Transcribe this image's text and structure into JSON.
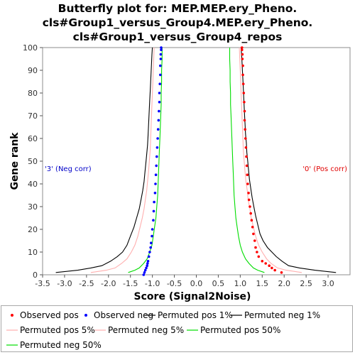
{
  "title_lines": [
    "Butterfly plot for: MEP.MEP.ery_Pheno.",
    "cls#Group1_versus_Group4.MEP.ery_Pheno.",
    "cls#Group1_versus_Group4_repos"
  ],
  "colors": {
    "observed_pos": "#ff0000",
    "observed_neg": "#0000ff",
    "permuted_1": "#000000",
    "permuted_5": "#ffafaf",
    "permuted_50": "#00dd00",
    "neg_annotation": "#0000c8",
    "pos_annotation": "#e00000"
  },
  "chart_data": {
    "type": "scatter",
    "xlabel": "Score (Signal2Noise)",
    "ylabel": "Gene rank",
    "xlim": [
      -3.5,
      3.5
    ],
    "ylim": [
      0,
      100
    ],
    "x_ticks": [
      "-3.5",
      "-3.0",
      "-2.5",
      "-2.0",
      "-1.5",
      "-1.0",
      "-0.5",
      "0.0",
      "0.5",
      "1.0",
      "1.5",
      "2.0",
      "2.5",
      "3.0"
    ],
    "y_ticks": [
      "0",
      "10",
      "20",
      "30",
      "40",
      "50",
      "60",
      "70",
      "80",
      "90",
      "100"
    ],
    "grid": false,
    "annotations": {
      "neg": "'3' (Neg corr)",
      "pos": "'0' (Pos corr)"
    },
    "legend": [
      {
        "name": "Observed pos",
        "kind": "dot",
        "color": "#ff0000"
      },
      {
        "name": "Observed neg",
        "kind": "dot",
        "color": "#0000ff"
      },
      {
        "name": "Permuted pos 1%",
        "kind": "line",
        "color": "#000000"
      },
      {
        "name": "Permuted neg 1%",
        "kind": "line",
        "color": "#000000"
      },
      {
        "name": "Permuted pos 5%",
        "kind": "line",
        "color": "#ffafaf"
      },
      {
        "name": "Permuted neg 5%",
        "kind": "line",
        "color": "#ffafaf"
      },
      {
        "name": "Permuted pos 50%",
        "kind": "line",
        "color": "#00dd00"
      },
      {
        "name": "Permuted neg 50%",
        "kind": "line",
        "color": "#00dd00"
      }
    ],
    "series": [
      {
        "name": "Observed pos",
        "kind": "dots",
        "color": "#ff0000",
        "points": [
          [
            1.94,
            1
          ],
          [
            1.79,
            2
          ],
          [
            1.72,
            3
          ],
          [
            1.66,
            4
          ],
          [
            1.58,
            5
          ],
          [
            1.5,
            6
          ],
          [
            1.42,
            8
          ],
          [
            1.38,
            10
          ],
          [
            1.35,
            12
          ],
          [
            1.33,
            15
          ],
          [
            1.3,
            18
          ],
          [
            1.28,
            21
          ],
          [
            1.26,
            24
          ],
          [
            1.24,
            27
          ],
          [
            1.22,
            30
          ],
          [
            1.2,
            33
          ],
          [
            1.19,
            36
          ],
          [
            1.17,
            40
          ],
          [
            1.16,
            44
          ],
          [
            1.15,
            48
          ],
          [
            1.14,
            52
          ],
          [
            1.13,
            56
          ],
          [
            1.12,
            60
          ],
          [
            1.11,
            64
          ],
          [
            1.1,
            68
          ],
          [
            1.1,
            72
          ],
          [
            1.09,
            76
          ],
          [
            1.08,
            80
          ],
          [
            1.07,
            84
          ],
          [
            1.06,
            88
          ],
          [
            1.06,
            92
          ],
          [
            1.05,
            95
          ],
          [
            1.05,
            97
          ],
          [
            1.04,
            99
          ],
          [
            1.04,
            100
          ]
        ]
      },
      {
        "name": "Observed neg",
        "kind": "dots",
        "color": "#0000ff",
        "points": [
          [
            -1.2,
            0
          ],
          [
            -1.18,
            1
          ],
          [
            -1.16,
            2
          ],
          [
            -1.14,
            3
          ],
          [
            -1.12,
            4
          ],
          [
            -1.11,
            5
          ],
          [
            -1.1,
            6
          ],
          [
            -1.08,
            8
          ],
          [
            -1.06,
            10
          ],
          [
            -1.04,
            12
          ],
          [
            -1.03,
            14
          ],
          [
            -1.01,
            17
          ],
          [
            -1.0,
            20
          ],
          [
            -0.98,
            24
          ],
          [
            -0.97,
            28
          ],
          [
            -0.96,
            32
          ],
          [
            -0.94,
            36
          ],
          [
            -0.93,
            40
          ],
          [
            -0.92,
            44
          ],
          [
            -0.91,
            48
          ],
          [
            -0.9,
            52
          ],
          [
            -0.89,
            56
          ],
          [
            -0.88,
            60
          ],
          [
            -0.87,
            64
          ],
          [
            -0.86,
            68
          ],
          [
            -0.85,
            72
          ],
          [
            -0.84,
            76
          ],
          [
            -0.84,
            80
          ],
          [
            -0.83,
            84
          ],
          [
            -0.82,
            88
          ],
          [
            -0.82,
            92
          ],
          [
            -0.81,
            95
          ],
          [
            -0.81,
            97
          ],
          [
            -0.8,
            99
          ],
          [
            -0.8,
            100
          ]
        ]
      },
      {
        "name": "Permuted pos 1%",
        "kind": "line",
        "color": "#000000",
        "points": [
          [
            3.18,
            1
          ],
          [
            2.7,
            2
          ],
          [
            2.35,
            3
          ],
          [
            2.1,
            4
          ],
          [
            1.95,
            6
          ],
          [
            1.82,
            8
          ],
          [
            1.72,
            10
          ],
          [
            1.62,
            12
          ],
          [
            1.52,
            15
          ],
          [
            1.45,
            18
          ],
          [
            1.4,
            22
          ],
          [
            1.35,
            26
          ],
          [
            1.31,
            30
          ],
          [
            1.27,
            34
          ],
          [
            1.24,
            38
          ],
          [
            1.21,
            42
          ],
          [
            1.19,
            46
          ],
          [
            1.17,
            50
          ],
          [
            1.15,
            54
          ],
          [
            1.14,
            58
          ],
          [
            1.12,
            62
          ],
          [
            1.11,
            66
          ],
          [
            1.1,
            70
          ],
          [
            1.09,
            74
          ],
          [
            1.08,
            78
          ],
          [
            1.07,
            82
          ],
          [
            1.06,
            86
          ],
          [
            1.05,
            90
          ],
          [
            1.04,
            94
          ],
          [
            1.03,
            97
          ],
          [
            1.02,
            100
          ]
        ]
      },
      {
        "name": "Permuted neg 1%",
        "kind": "line",
        "color": "#000000",
        "points": [
          [
            -3.2,
            1
          ],
          [
            -2.7,
            2
          ],
          [
            -2.4,
            3
          ],
          [
            -2.15,
            4
          ],
          [
            -1.95,
            6
          ],
          [
            -1.8,
            8
          ],
          [
            -1.68,
            10
          ],
          [
            -1.58,
            13
          ],
          [
            -1.5,
            17
          ],
          [
            -1.42,
            21
          ],
          [
            -1.36,
            25
          ],
          [
            -1.3,
            29
          ],
          [
            -1.26,
            33
          ],
          [
            -1.22,
            37
          ],
          [
            -1.19,
            41
          ],
          [
            -1.17,
            45
          ],
          [
            -1.15,
            49
          ],
          [
            -1.13,
            53
          ],
          [
            -1.11,
            57
          ],
          [
            -1.1,
            61
          ],
          [
            -1.09,
            65
          ],
          [
            -1.08,
            69
          ],
          [
            -1.07,
            73
          ],
          [
            -1.06,
            77
          ],
          [
            -1.05,
            81
          ],
          [
            -1.04,
            85
          ],
          [
            -1.03,
            89
          ],
          [
            -1.02,
            93
          ],
          [
            -1.01,
            97
          ],
          [
            -1.0,
            100
          ]
        ]
      },
      {
        "name": "Permuted pos 5%",
        "kind": "line",
        "color": "#ffafaf",
        "points": [
          [
            2.4,
            1
          ],
          [
            2.05,
            2
          ],
          [
            1.85,
            3
          ],
          [
            1.7,
            5
          ],
          [
            1.6,
            7
          ],
          [
            1.5,
            10
          ],
          [
            1.42,
            13
          ],
          [
            1.35,
            17
          ],
          [
            1.3,
            21
          ],
          [
            1.25,
            25
          ],
          [
            1.22,
            29
          ],
          [
            1.18,
            33
          ],
          [
            1.16,
            37
          ],
          [
            1.13,
            41
          ],
          [
            1.11,
            45
          ],
          [
            1.09,
            50
          ],
          [
            1.07,
            55
          ],
          [
            1.06,
            60
          ],
          [
            1.05,
            65
          ],
          [
            1.04,
            70
          ],
          [
            1.03,
            75
          ],
          [
            1.02,
            80
          ],
          [
            1.01,
            85
          ],
          [
            1.0,
            90
          ],
          [
            0.99,
            95
          ],
          [
            0.98,
            100
          ]
        ]
      },
      {
        "name": "Permuted neg 5%",
        "kind": "line",
        "color": "#ffafaf",
        "points": [
          [
            -2.4,
            1
          ],
          [
            -2.05,
            2
          ],
          [
            -1.85,
            3
          ],
          [
            -1.7,
            5
          ],
          [
            -1.58,
            7
          ],
          [
            -1.48,
            10
          ],
          [
            -1.4,
            13
          ],
          [
            -1.33,
            17
          ],
          [
            -1.28,
            21
          ],
          [
            -1.23,
            25
          ],
          [
            -1.19,
            29
          ],
          [
            -1.16,
            33
          ],
          [
            -1.13,
            37
          ],
          [
            -1.11,
            41
          ],
          [
            -1.09,
            45
          ],
          [
            -1.07,
            50
          ],
          [
            -1.05,
            55
          ],
          [
            -1.04,
            60
          ],
          [
            -1.03,
            65
          ],
          [
            -1.02,
            70
          ],
          [
            -1.01,
            75
          ],
          [
            -1.0,
            80
          ],
          [
            -0.99,
            85
          ],
          [
            -0.98,
            90
          ],
          [
            -0.97,
            95
          ],
          [
            -0.96,
            100
          ]
        ]
      },
      {
        "name": "Permuted pos 50%",
        "kind": "line",
        "color": "#00dd00",
        "points": [
          [
            1.55,
            1
          ],
          [
            1.4,
            2
          ],
          [
            1.3,
            3
          ],
          [
            1.2,
            5
          ],
          [
            1.12,
            7
          ],
          [
            1.05,
            10
          ],
          [
            1.0,
            13
          ],
          [
            0.96,
            17
          ],
          [
            0.93,
            21
          ],
          [
            0.9,
            25
          ],
          [
            0.88,
            30
          ],
          [
            0.86,
            35
          ],
          [
            0.85,
            40
          ],
          [
            0.84,
            45
          ],
          [
            0.83,
            50
          ],
          [
            0.82,
            55
          ],
          [
            0.81,
            60
          ],
          [
            0.8,
            65
          ],
          [
            0.79,
            70
          ],
          [
            0.78,
            75
          ],
          [
            0.78,
            80
          ],
          [
            0.77,
            85
          ],
          [
            0.77,
            90
          ],
          [
            0.76,
            95
          ],
          [
            0.76,
            100
          ]
        ]
      },
      {
        "name": "Permuted neg 50%",
        "kind": "line",
        "color": "#00dd00",
        "points": [
          [
            -1.55,
            1
          ],
          [
            -1.4,
            2
          ],
          [
            -1.3,
            3
          ],
          [
            -1.2,
            5
          ],
          [
            -1.12,
            7
          ],
          [
            -1.06,
            10
          ],
          [
            -1.01,
            13
          ],
          [
            -0.98,
            17
          ],
          [
            -0.95,
            21
          ],
          [
            -0.92,
            25
          ],
          [
            -0.9,
            30
          ],
          [
            -0.88,
            35
          ],
          [
            -0.87,
            40
          ],
          [
            -0.86,
            45
          ],
          [
            -0.85,
            50
          ],
          [
            -0.84,
            55
          ],
          [
            -0.83,
            60
          ],
          [
            -0.82,
            65
          ],
          [
            -0.81,
            70
          ],
          [
            -0.8,
            75
          ],
          [
            -0.8,
            80
          ],
          [
            -0.79,
            85
          ],
          [
            -0.79,
            90
          ],
          [
            -0.78,
            95
          ],
          [
            -0.78,
            100
          ]
        ]
      }
    ]
  }
}
